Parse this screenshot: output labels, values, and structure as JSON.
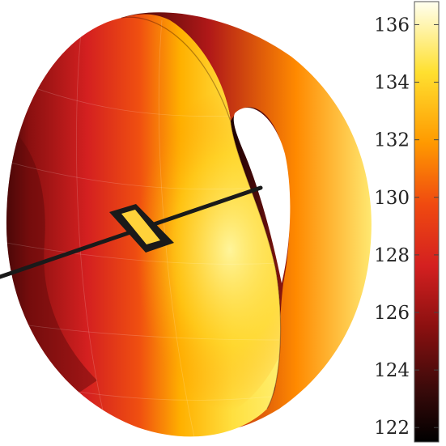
{
  "chart_data": {
    "type": "heatmap",
    "title": "",
    "description": "",
    "colorbar": {
      "range": [
        121.5,
        136.8
      ],
      "ticks": [
        "122",
        "124",
        "126",
        "128",
        "130",
        "132",
        "134",
        "136"
      ],
      "tick_values": [
        122,
        124,
        126,
        128,
        130,
        132,
        134,
        136
      ],
      "colormap": [
        "#000000",
        "#3a0a0a",
        "#8a1010",
        "#d42020",
        "#f04a10",
        "#ff9a00",
        "#ffe030",
        "#fffff0"
      ]
    },
    "surface": {
      "shape": "torus-section",
      "inner_face_value_range": [
        129,
        136
      ],
      "outer_rim_value_range": [
        122,
        128
      ],
      "marker": "diamond"
    }
  }
}
